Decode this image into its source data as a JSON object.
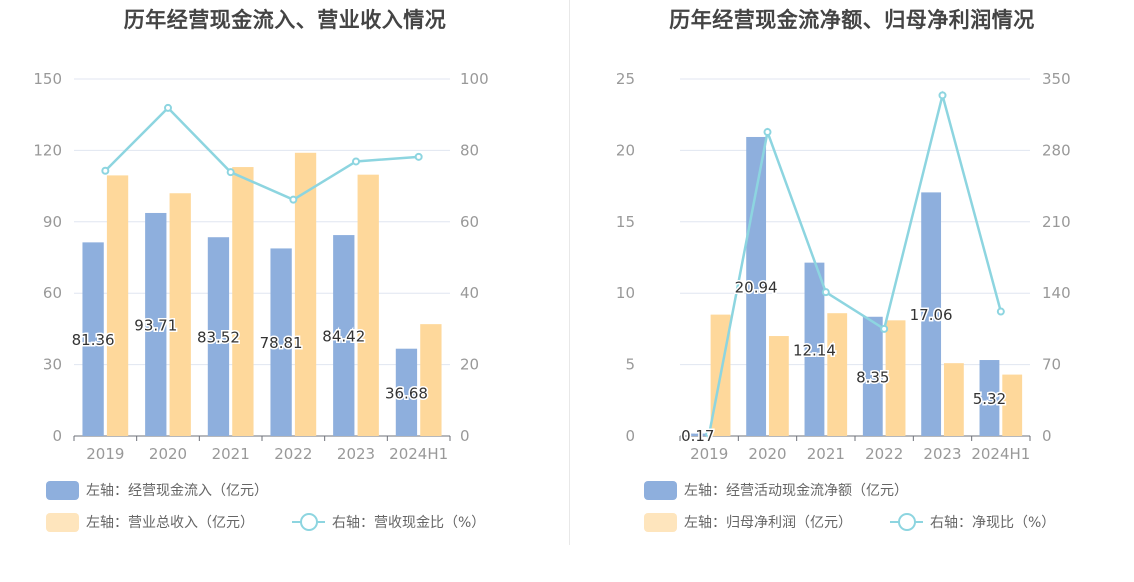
{
  "colors": {
    "bar_primary": "#8eafdd",
    "bar_secondary": "#fed89b",
    "line": "#8dd5e0",
    "grid": "#e0e6f1",
    "axis_text": "#999999",
    "label_text": "#333333"
  },
  "chart_data": [
    {
      "type": "bar",
      "title": "历年经营现金流入、营业收入情况",
      "categories": [
        "2019",
        "2020",
        "2021",
        "2022",
        "2023",
        "2024H1"
      ],
      "y_left": {
        "min": 0,
        "max": 150,
        "ticks": [
          "0",
          "30",
          "60",
          "90",
          "120",
          "150"
        ]
      },
      "y_right": {
        "min": 0,
        "max": 100,
        "ticks": [
          "0",
          "20",
          "40",
          "60",
          "80",
          "100"
        ]
      },
      "grid": true,
      "series": [
        {
          "name": "左轴：经营现金流入（亿元）",
          "axis": "left",
          "kind": "bar",
          "color": "#8eafdd",
          "values": [
            81.36,
            93.71,
            83.52,
            78.81,
            84.42,
            36.68
          ],
          "labels": [
            "81.36",
            "93.71",
            "83.52",
            "78.81",
            "84.42",
            "36.68"
          ]
        },
        {
          "name": "左轴：营业总收入（亿元）",
          "axis": "left",
          "kind": "bar",
          "color": "#fed89b",
          "values": [
            109.5,
            102,
            113,
            119,
            109.8,
            47
          ]
        },
        {
          "name": "右轴：营收现金比（%）",
          "axis": "right",
          "kind": "line",
          "color": "#8dd5e0",
          "values": [
            74.3,
            91.9,
            73.9,
            66.2,
            76.9,
            78.2
          ]
        }
      ],
      "legend": {
        "position": "bottom-left"
      }
    },
    {
      "type": "bar",
      "title": "历年经营现金流净额、归母净利润情况",
      "categories": [
        "2019",
        "2020",
        "2021",
        "2022",
        "2023",
        "2024H1"
      ],
      "y_left": {
        "min": 0,
        "max": 25,
        "ticks": [
          "0",
          "5",
          "10",
          "15",
          "20",
          "25"
        ]
      },
      "y_right": {
        "min": 0,
        "max": 350,
        "ticks": [
          "0",
          "70",
          "140",
          "210",
          "280",
          "350"
        ]
      },
      "grid": true,
      "series": [
        {
          "name": "左轴：经营活动现金流净额（亿元）",
          "axis": "left",
          "kind": "bar",
          "color": "#8eafdd",
          "values": [
            0.17,
            20.94,
            12.14,
            8.35,
            17.06,
            5.32
          ],
          "labels": [
            "0.17",
            "20.94",
            "12.14",
            "8.35",
            "17.06",
            "5.32"
          ]
        },
        {
          "name": "左轴：归母净利润（亿元）",
          "axis": "left",
          "kind": "bar",
          "color": "#fed89b",
          "values": [
            8.5,
            7.0,
            8.6,
            8.1,
            5.1,
            4.3
          ]
        },
        {
          "name": "右轴：净现比（%）",
          "axis": "right",
          "kind": "line",
          "color": "#8dd5e0",
          "values": [
            2,
            298,
            141,
            105,
            334,
            122
          ]
        }
      ],
      "legend": {
        "position": "bottom-left"
      }
    }
  ]
}
